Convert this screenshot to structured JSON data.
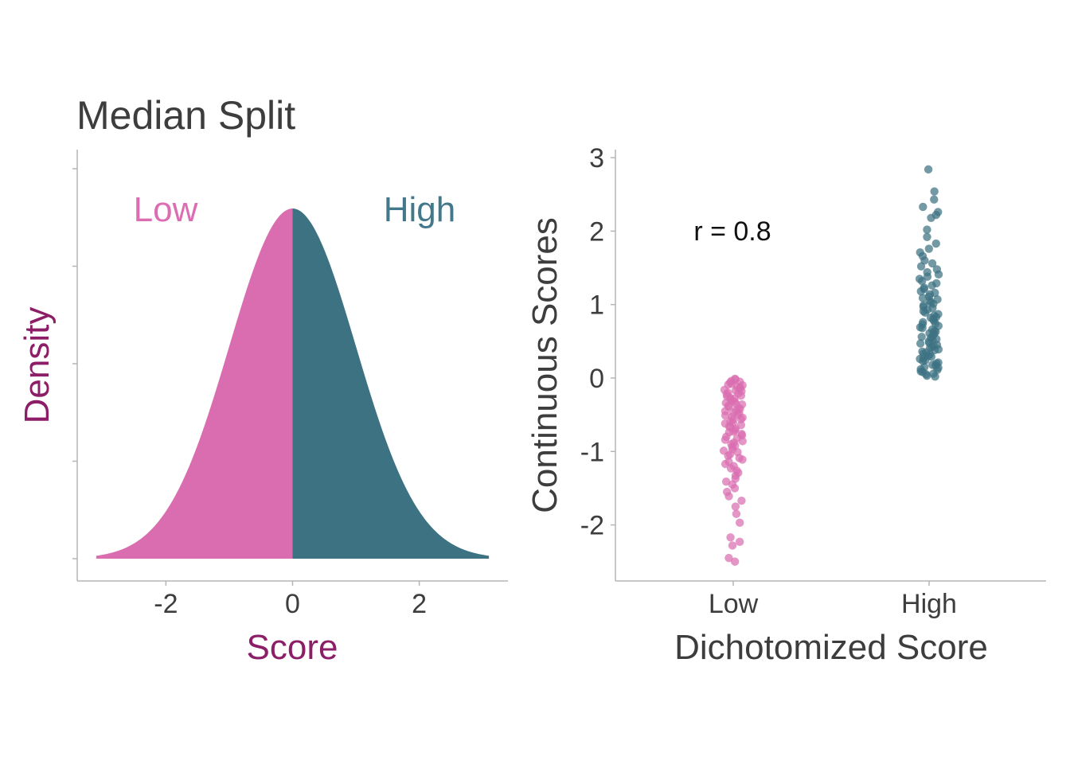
{
  "title": "Median Split",
  "colors": {
    "low": "#da6db0",
    "high": "#3d7282",
    "low_label": "#dc6db2",
    "high_label": "#43788a",
    "left_axis_titles": "#8c1d67",
    "text": "#3d3d3d",
    "axis": "#b5b5b5",
    "annotation": "#111111"
  },
  "chart_data": [
    {
      "type": "area",
      "distribution": "standard normal density",
      "split_at": 0,
      "x_range": [
        -3.1,
        3.1
      ],
      "ylim": [
        0,
        0.4
      ],
      "xlabel": "Score",
      "ylabel": "Density",
      "x_ticks": [
        -2,
        0,
        2
      ],
      "x_tick_labels": [
        "-2",
        "0",
        "2"
      ],
      "y_ticks": [
        0,
        0.1,
        0.2,
        0.3,
        0.4
      ],
      "y_tick_labels_shown": false,
      "regions": [
        {
          "name": "Low",
          "x_from": -3.1,
          "x_to": 0
        },
        {
          "name": "High",
          "x_from": 0,
          "x_to": 3.1
        }
      ],
      "region_labels": [
        "Low",
        "High"
      ],
      "grid": false
    },
    {
      "type": "scatter",
      "jitter": true,
      "categories": [
        "Low",
        "High"
      ],
      "xlabel": "Dichotomized Score",
      "ylabel": "Continuous Scores",
      "ylim": [
        -2.7,
        3.1
      ],
      "y_ticks": [
        3,
        2,
        1,
        0,
        -1,
        -2
      ],
      "y_tick_labels": [
        "3",
        "2",
        "1",
        "0",
        "-1",
        "-2"
      ],
      "annotation": "r = 0.8",
      "grid": false,
      "series": [
        {
          "category": "Low",
          "values": [
            -0.01,
            -0.02,
            -0.04,
            -0.05,
            -0.06,
            -0.08,
            -0.09,
            -0.1,
            -0.12,
            -0.13,
            -0.14,
            -0.16,
            -0.17,
            -0.18,
            -0.2,
            -0.21,
            -0.22,
            -0.24,
            -0.25,
            -0.27,
            -0.28,
            -0.29,
            -0.31,
            -0.32,
            -0.34,
            -0.35,
            -0.36,
            -0.38,
            -0.39,
            -0.41,
            -0.42,
            -0.44,
            -0.45,
            -0.47,
            -0.48,
            -0.5,
            -0.51,
            -0.53,
            -0.54,
            -0.56,
            -0.57,
            -0.59,
            -0.61,
            -0.62,
            -0.64,
            -0.66,
            -0.67,
            -0.69,
            -0.71,
            -0.73,
            -0.74,
            -0.76,
            -0.78,
            -0.8,
            -0.82,
            -0.84,
            -0.86,
            -0.88,
            -0.9,
            -0.92,
            -0.94,
            -0.97,
            -0.99,
            -1.01,
            -1.04,
            -1.06,
            -1.09,
            -1.11,
            -1.14,
            -1.17,
            -1.2,
            -1.23,
            -1.26,
            -1.29,
            -1.33,
            -1.37,
            -1.41,
            -1.45,
            -1.5,
            -1.55,
            -1.61,
            -1.67,
            -1.75,
            -1.85,
            -1.97,
            -2.17,
            -2.23,
            -2.28,
            -2.45,
            -2.5
          ]
        },
        {
          "category": "High",
          "values": [
            2.84,
            2.54,
            2.43,
            2.33,
            2.26,
            2.22,
            2.18,
            2.02,
            1.92,
            1.83,
            1.76,
            1.71,
            1.66,
            1.6,
            1.56,
            1.52,
            1.48,
            1.44,
            1.41,
            1.38,
            1.35,
            1.32,
            1.29,
            1.26,
            1.23,
            1.21,
            1.18,
            1.16,
            1.14,
            1.11,
            1.09,
            1.07,
            1.05,
            1.03,
            1.01,
            0.99,
            0.97,
            0.95,
            0.93,
            0.91,
            0.89,
            0.87,
            0.85,
            0.83,
            0.82,
            0.8,
            0.78,
            0.76,
            0.74,
            0.73,
            0.71,
            0.69,
            0.68,
            0.66,
            0.64,
            0.63,
            0.61,
            0.6,
            0.58,
            0.56,
            0.55,
            0.53,
            0.52,
            0.5,
            0.48,
            0.47,
            0.45,
            0.44,
            0.42,
            0.41,
            0.39,
            0.38,
            0.36,
            0.35,
            0.33,
            0.32,
            0.3,
            0.29,
            0.27,
            0.26,
            0.24,
            0.23,
            0.21,
            0.2,
            0.18,
            0.17,
            0.15,
            0.14,
            0.12,
            0.11,
            0.09,
            0.08,
            0.06,
            0.05,
            0.03,
            0.02
          ]
        }
      ]
    }
  ]
}
